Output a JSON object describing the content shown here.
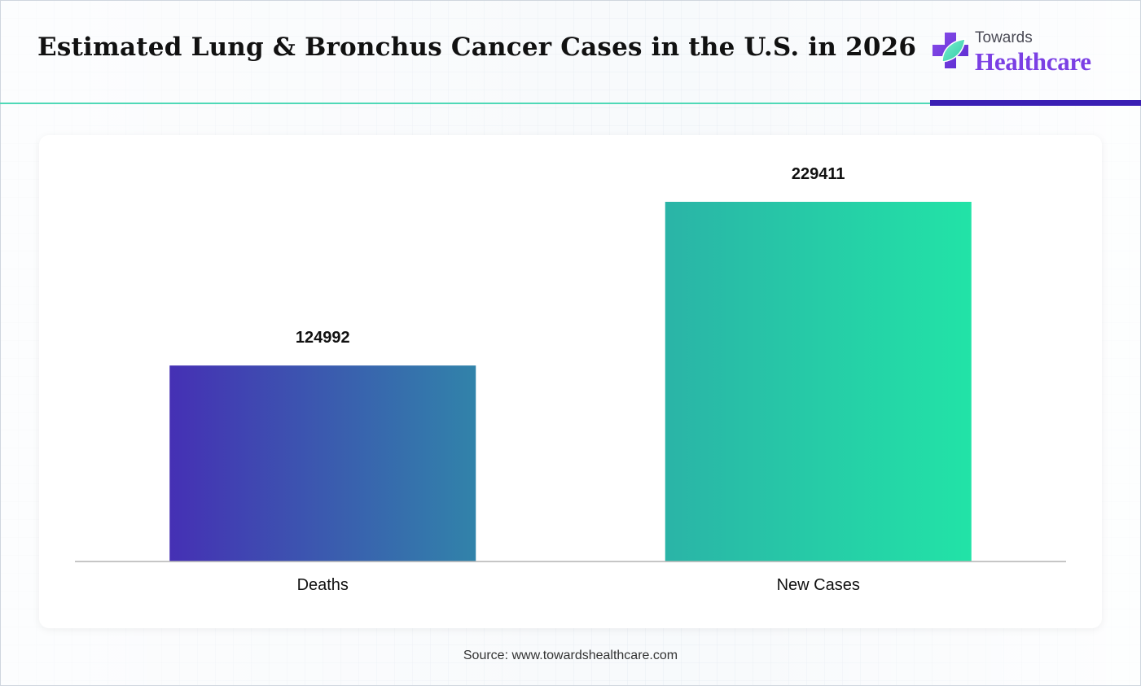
{
  "header": {
    "title": "Estimated Lung & Bronchus Cancer Cases in the U.S. in 2026"
  },
  "logo": {
    "icon": "medical-cross-leaf-icon",
    "top_text": "Towards",
    "bottom_text": "Healthcare"
  },
  "chart_data": {
    "type": "bar",
    "categories": [
      "Deaths",
      "New Cases"
    ],
    "values": [
      124992,
      229411
    ],
    "title": "Estimated Lung & Bronchus Cancer Cases in the U.S. in 2026",
    "xlabel": "",
    "ylabel": "",
    "ylim": [
      0,
      250000
    ],
    "grid": false,
    "legend": "none",
    "bar_gradients": [
      [
        "#4530b4",
        "#3183aa"
      ],
      [
        "#2ab4a7",
        "#22e3a7"
      ]
    ]
  },
  "footer": {
    "source": "Source: www.towardshealthcare.com"
  },
  "colors": {
    "accent_teal": "#4fd9b7",
    "accent_purple": "#3a1fb4",
    "brand_purple": "#7b3fe4"
  }
}
